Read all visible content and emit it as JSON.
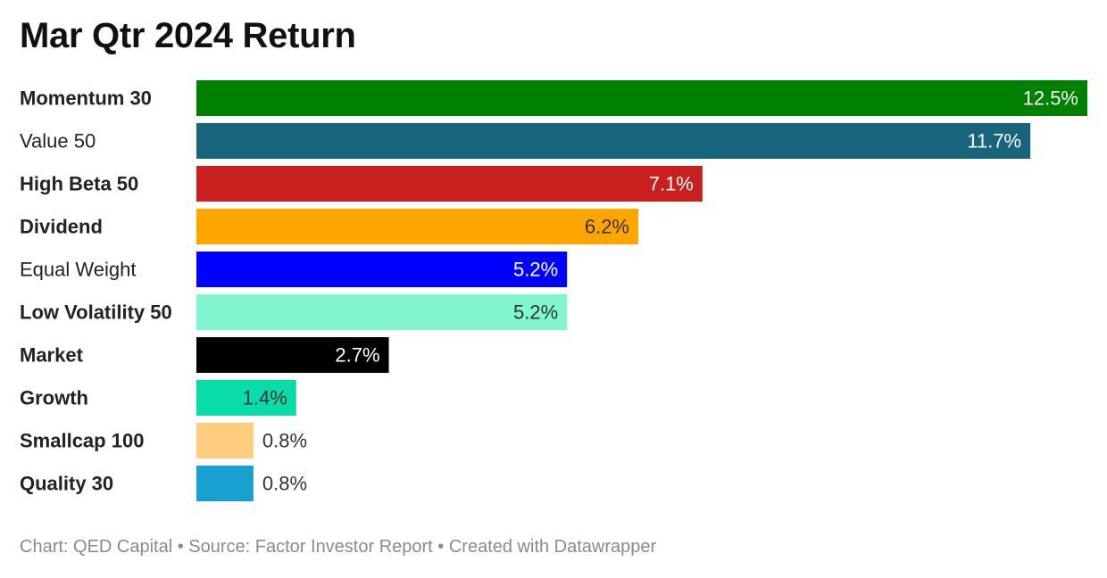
{
  "chart_data": {
    "type": "bar",
    "orientation": "horizontal",
    "title": "Mar Qtr 2024 Return",
    "categories": [
      "Momentum 30",
      "Value 50",
      "High Beta 50",
      "Dividend",
      "Equal Weight",
      "Low Volatility 50",
      "Market",
      "Growth",
      "Smallcap 100",
      "Quality 30"
    ],
    "values": [
      12.5,
      11.7,
      7.1,
      6.2,
      5.2,
      5.2,
      2.7,
      1.4,
      0.8,
      0.8
    ],
    "value_labels": [
      "12.5%",
      "11.7%",
      "7.1%",
      "6.2%",
      "5.2%",
      "5.2%",
      "2.7%",
      "1.4%",
      "0.8%",
      "0.8%"
    ],
    "colors": [
      "#008000",
      "#18647c",
      "#c91f1f",
      "#ffa500",
      "#0000ff",
      "#80f5d0",
      "#000000",
      "#08dca8",
      "#ffcd80",
      "#18a0d0"
    ],
    "label_colors": [
      "#ffffff",
      "#ffffff",
      "#ffffff",
      "#333333",
      "#ffffff",
      "#333333",
      "#ffffff",
      "#333333",
      "#333333",
      "#333333"
    ],
    "bold_categories": [
      true,
      false,
      true,
      true,
      false,
      true,
      true,
      true,
      true,
      true
    ],
    "xlim": [
      0,
      12.5
    ],
    "xlabel": "",
    "ylabel": ""
  },
  "footer": "Chart: QED Capital • Source: Factor Investor Report • Created with Datawrapper"
}
